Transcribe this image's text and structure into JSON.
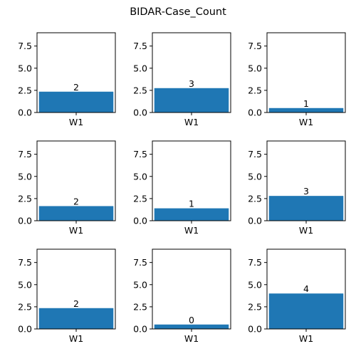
{
  "figure": {
    "title": "BIDAR-Case_Count",
    "bar_color": "#1f77b4"
  },
  "chart_data": [
    {
      "type": "bar",
      "categories": [
        "W1"
      ],
      "values": [
        2.35
      ],
      "data_labels": [
        "2"
      ],
      "ylim": [
        0,
        9
      ],
      "yticks": [
        "0.0",
        "2.5",
        "5.0",
        "7.5"
      ],
      "grid": false
    },
    {
      "type": "bar",
      "categories": [
        "W1"
      ],
      "values": [
        2.75
      ],
      "data_labels": [
        "3"
      ],
      "ylim": [
        0,
        9
      ],
      "yticks": [
        "0.0",
        "2.5",
        "5.0",
        "7.5"
      ],
      "grid": false
    },
    {
      "type": "bar",
      "categories": [
        "W1"
      ],
      "values": [
        0.5
      ],
      "data_labels": [
        "1"
      ],
      "ylim": [
        0,
        9
      ],
      "yticks": [
        "0.0",
        "2.5",
        "5.0",
        "7.5"
      ],
      "grid": false
    },
    {
      "type": "bar",
      "categories": [
        "W1"
      ],
      "values": [
        1.65
      ],
      "data_labels": [
        "2"
      ],
      "ylim": [
        0,
        9
      ],
      "yticks": [
        "0.0",
        "2.5",
        "5.0",
        "7.5"
      ],
      "grid": false
    },
    {
      "type": "bar",
      "categories": [
        "W1"
      ],
      "values": [
        1.4
      ],
      "data_labels": [
        "1"
      ],
      "ylim": [
        0,
        9
      ],
      "yticks": [
        "0.0",
        "2.5",
        "5.0",
        "7.5"
      ],
      "grid": false
    },
    {
      "type": "bar",
      "categories": [
        "W1"
      ],
      "values": [
        2.8
      ],
      "data_labels": [
        "3"
      ],
      "ylim": [
        0,
        9
      ],
      "yticks": [
        "0.0",
        "2.5",
        "5.0",
        "7.5"
      ],
      "grid": false
    },
    {
      "type": "bar",
      "categories": [
        "W1"
      ],
      "values": [
        2.35
      ],
      "data_labels": [
        "2"
      ],
      "ylim": [
        0,
        9
      ],
      "yticks": [
        "0.0",
        "2.5",
        "5.0",
        "7.5"
      ],
      "grid": false
    },
    {
      "type": "bar",
      "categories": [
        "W1"
      ],
      "values": [
        0.5
      ],
      "data_labels": [
        "0"
      ],
      "ylim": [
        0,
        9
      ],
      "yticks": [
        "0.0",
        "2.5",
        "5.0",
        "7.5"
      ],
      "grid": false
    },
    {
      "type": "bar",
      "categories": [
        "W1"
      ],
      "values": [
        4.0
      ],
      "data_labels": [
        "4"
      ],
      "ylim": [
        0,
        9
      ],
      "yticks": [
        "0.0",
        "2.5",
        "5.0",
        "7.5"
      ],
      "grid": false
    }
  ]
}
